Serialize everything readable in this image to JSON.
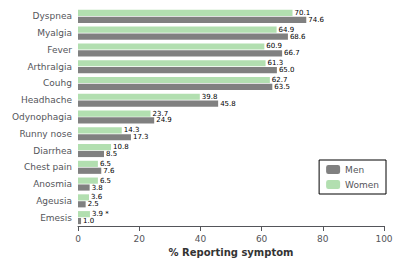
{
  "chart_data": {
    "type": "bar",
    "orientation": "horizontal",
    "categories": [
      "Emesis",
      "Ageusia",
      "Anosmia",
      "Chest pain",
      "Diarrhea",
      "Runny nose",
      "Odynophagia",
      "Headhache",
      "Couhg",
      "Arthralgia",
      "Fever",
      "Myalgia",
      "Dyspnea"
    ],
    "series": [
      {
        "name": "Men",
        "color": "#808080",
        "values": [
          1.0,
          2.5,
          3.8,
          7.6,
          8.5,
          17.3,
          24.9,
          45.8,
          63.5,
          65.0,
          66.7,
          68.6,
          74.6
        ],
        "value_labels": [
          "1.0",
          "2.5",
          "3.8",
          "7.6",
          "8.5",
          "17.3",
          "24.9",
          "45.8",
          "63.5",
          "65.0",
          "66.7",
          "68.6",
          "74.6"
        ]
      },
      {
        "name": "Women",
        "color": "#b2dfb0",
        "values": [
          3.9,
          3.6,
          6.5,
          6.5,
          10.8,
          14.3,
          23.7,
          39.8,
          62.7,
          61.3,
          60.9,
          64.9,
          70.1
        ],
        "value_labels": [
          "3.9 *",
          "3.6",
          "6.5",
          "6.5",
          "10.8",
          "14.3",
          "23.7",
          "39.8",
          "62.7",
          "61.3",
          "60.9",
          "64.9",
          "70.1"
        ]
      }
    ],
    "x_label": "% Reporting symptom",
    "xlim": [
      0,
      100
    ],
    "xticks": [
      0,
      20,
      40,
      60,
      80,
      100
    ],
    "grid": false,
    "legend": "lower right",
    "data_labels": true
  }
}
